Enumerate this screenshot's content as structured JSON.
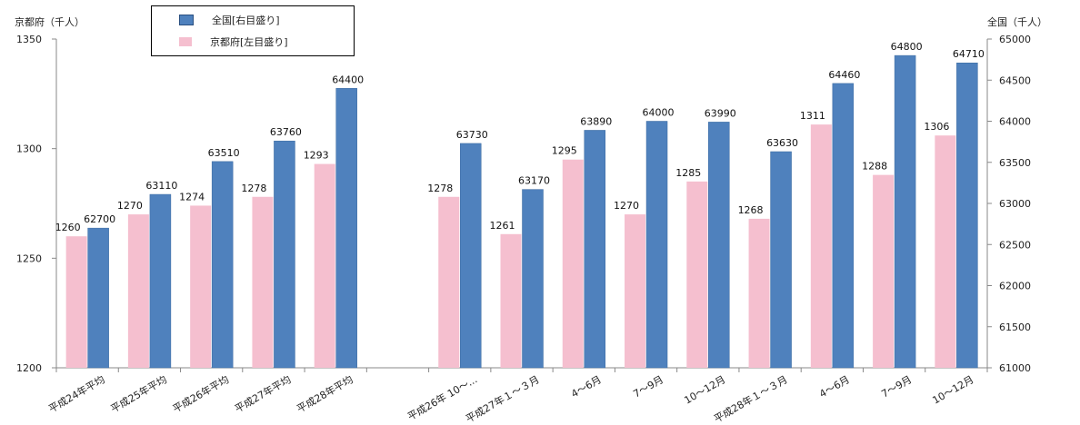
{
  "chart_data": {
    "type": "bar",
    "left_axis_title": "京都府（千人）",
    "right_axis_title": "全国（千人）",
    "left_axis": {
      "min": 1200,
      "max": 1350,
      "ticks": [
        "1200",
        "1250",
        "1300",
        "1350"
      ]
    },
    "right_axis": {
      "min": 61000,
      "max": 65000,
      "ticks": [
        "61000",
        "61500",
        "62000",
        "62500",
        "63000",
        "63500",
        "64000",
        "64500",
        "65000"
      ]
    },
    "categories": [
      "平成24年平均",
      "平成25年平均",
      "平成26年平均",
      "平成27年平均",
      "平成28年平均",
      "",
      "平成26年 10～...",
      "平成27年１～３月",
      "4～6月",
      "7～9月",
      "10～12月",
      "平成28年１～３月",
      "4～6月",
      "7～9月",
      "10～12月"
    ],
    "series": [
      {
        "name": "京都府[左目盛り]",
        "axis": "left",
        "color": "#f5bfcf",
        "values": [
          1260,
          1270,
          1274,
          1278,
          1293,
          null,
          1278,
          1261,
          1295,
          1270,
          1285,
          1268,
          1311,
          1288,
          1306
        ],
        "labels": [
          "1260",
          "1270",
          "1274",
          "1278",
          "1293",
          "",
          "1278",
          "1261",
          "1295",
          "1270",
          "1285",
          "1268",
          "1311",
          "1288",
          "1306"
        ]
      },
      {
        "name": "全国[右目盛り]",
        "axis": "right",
        "color": "#4f81bd",
        "values": [
          62700,
          63110,
          63510,
          63760,
          64400,
          null,
          63730,
          63170,
          63890,
          64000,
          63990,
          63630,
          64460,
          64800,
          64710
        ],
        "labels": [
          "62700",
          "63110",
          "63510",
          "63760",
          "64400",
          "",
          "63730",
          "63170",
          "63890",
          "64000",
          "63990",
          "63630",
          "64460",
          "64800",
          "64710"
        ]
      }
    ],
    "legend": {
      "position": "top-left",
      "entries": [
        {
          "label": "全国[右目盛り]",
          "color": "#4f81bd"
        },
        {
          "label": "京都府[左目盛り]",
          "color": "#f5bfcf"
        }
      ]
    },
    "grid": false
  }
}
